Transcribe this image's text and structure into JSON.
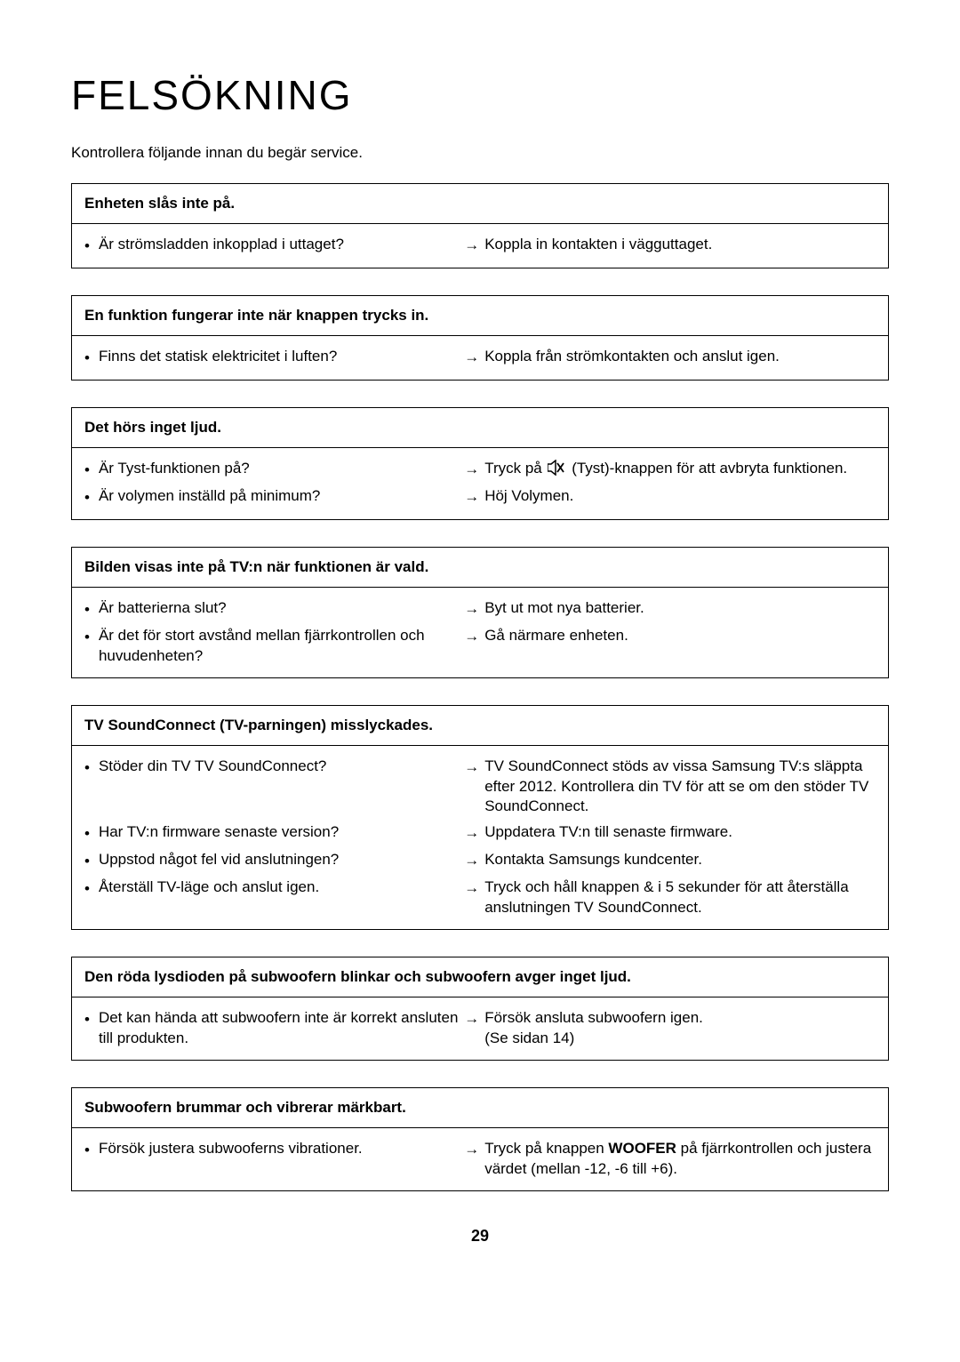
{
  "title": "FELSÖKNING",
  "intro": "Kontrollera följande innan du begär service.",
  "page_number": "29",
  "arrow_glyph": "→",
  "bullet_glyph": "•",
  "sections": [
    {
      "header": "Enheten slås inte på.",
      "rows": [
        {
          "q": "Är strömsladden inkopplad i uttaget?",
          "a": "Koppla in kontakten i vägguttaget."
        }
      ]
    },
    {
      "header": "En funktion fungerar inte när knappen trycks in.",
      "rows": [
        {
          "q": "Finns det statisk elektricitet i luften?",
          "a": "Koppla från strömkontakten och anslut igen."
        }
      ]
    },
    {
      "header": "Det hörs inget ljud.",
      "rows": [
        {
          "q": "Är Tyst-funktionen på?",
          "a_pre": "Tryck på ",
          "a_post": " (Tyst)-knappen för att avbryta funktionen.",
          "icon": "mute"
        },
        {
          "q": "Är volymen inställd på minimum?",
          "a": "Höj Volymen."
        }
      ]
    },
    {
      "header": "Bilden visas inte på TV:n när funktionen är vald.",
      "rows": [
        {
          "q": "Är batterierna slut?",
          "a": "Byt ut mot nya batterier."
        },
        {
          "q": "Är det för stort avstånd mellan fjärrkontrollen och huvudenheten?",
          "a": "Gå närmare enheten."
        }
      ]
    },
    {
      "header": "TV SoundConnect (TV-parningen) misslyckades.",
      "rows": [
        {
          "q": "Stöder din TV TV SoundConnect?",
          "a": "TV SoundConnect stöds av vissa Samsung TV:s släppta efter 2012. Kontrollera din TV för att se om den stöder TV SoundConnect."
        },
        {
          "q": "Har TV:n firmware senaste version?",
          "a": "Uppdatera TV:n till senaste firmware."
        },
        {
          "q": "Uppstod något fel vid anslutningen?",
          "a": "Kontakta Samsungs kundcenter."
        },
        {
          "q": "Återställ TV-läge och anslut igen.",
          "a": "Tryck och håll knappen &   i 5 sekunder för att återställa anslutningen TV SoundConnect."
        }
      ]
    },
    {
      "header": "Den röda lysdioden på subwoofern blinkar och subwoofern avger inget ljud.",
      "rows": [
        {
          "q": "Det kan hända att subwoofern inte är korrekt ansluten till produkten.",
          "a": "Försök ansluta subwoofern igen.",
          "a2": "(Se sidan 14)"
        }
      ]
    },
    {
      "header": "Subwoofern brummar och vibrerar märkbart.",
      "rows": [
        {
          "q": "Försök justera subwooferns vibrationer.",
          "a_pre2": "Tryck på knappen ",
          "a_bold": "WOOFER",
          "a_post2": " på fjärrkontrollen och justera värdet (mellan -12, -6 till +6)."
        }
      ]
    }
  ]
}
